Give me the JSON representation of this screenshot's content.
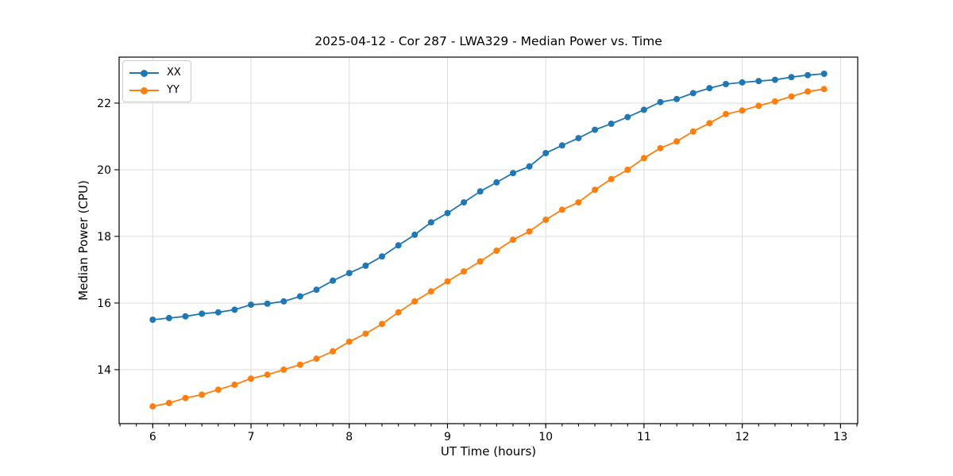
{
  "chart_data": {
    "type": "line",
    "title": "2025-04-12 - Cor 287 - LWA329 - Median Power vs. Time",
    "xlabel": "UT Time (hours)",
    "ylabel": "Median Power (CPU)",
    "xlim": [
      5.658,
      13.175
    ],
    "ylim": [
      12.38,
      23.38
    ],
    "xticks": [
      6,
      7,
      8,
      9,
      10,
      11,
      12,
      13
    ],
    "yticks": [
      14,
      16,
      18,
      20,
      22
    ],
    "x_minor_tick_step": 0.16667,
    "grid": true,
    "legend_position": "upper left",
    "marker": "circle",
    "x": [
      6.0,
      6.1667,
      6.3333,
      6.5,
      6.6667,
      6.8333,
      7.0,
      7.1667,
      7.3333,
      7.5,
      7.6667,
      7.8333,
      8.0,
      8.1667,
      8.3333,
      8.5,
      8.6667,
      8.8333,
      9.0,
      9.1667,
      9.3333,
      9.5,
      9.6667,
      9.8333,
      10.0,
      10.1667,
      10.3333,
      10.5,
      10.6667,
      10.8333,
      11.0,
      11.1667,
      11.3333,
      11.5,
      11.6667,
      11.8333,
      12.0,
      12.1667,
      12.3333,
      12.5,
      12.6667,
      12.8333
    ],
    "series": [
      {
        "name": "XX",
        "color": "#1f77b4",
        "values": [
          15.5,
          15.55,
          15.6,
          15.68,
          15.72,
          15.8,
          15.95,
          15.98,
          16.05,
          16.2,
          16.4,
          16.67,
          16.9,
          17.12,
          17.4,
          17.73,
          18.05,
          18.42,
          18.7,
          19.02,
          19.35,
          19.62,
          19.9,
          20.1,
          20.5,
          20.73,
          20.95,
          21.2,
          21.38,
          21.58,
          21.8,
          22.03,
          22.12,
          22.3,
          22.45,
          22.57,
          22.62,
          22.66,
          22.7,
          22.78,
          22.84,
          22.88
        ]
      },
      {
        "name": "YY",
        "color": "#ff7f0e",
        "values": [
          12.9,
          13.0,
          13.15,
          13.25,
          13.4,
          13.55,
          13.73,
          13.85,
          14.0,
          14.15,
          14.33,
          14.55,
          14.84,
          15.08,
          15.37,
          15.72,
          16.05,
          16.35,
          16.65,
          16.95,
          17.25,
          17.57,
          17.9,
          18.15,
          18.5,
          18.8,
          19.02,
          19.4,
          19.72,
          20.0,
          20.35,
          20.65,
          20.85,
          21.15,
          21.4,
          21.67,
          21.78,
          21.92,
          22.05,
          22.2,
          22.35,
          22.42
        ]
      }
    ]
  }
}
